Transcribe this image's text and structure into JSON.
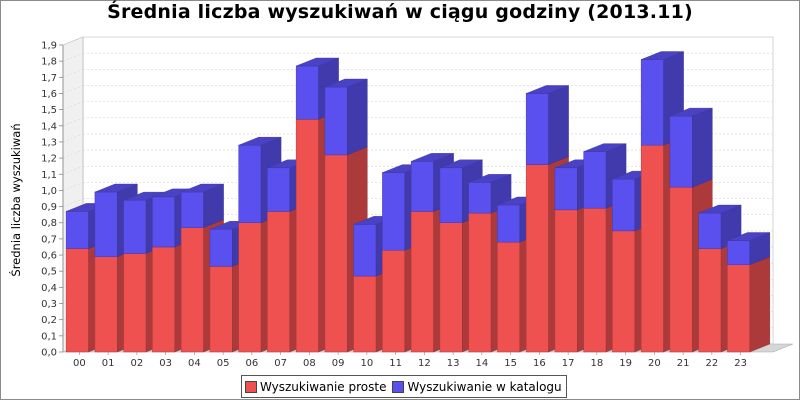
{
  "chart_data": {
    "type": "bar",
    "stacked": true,
    "three_d": true,
    "title": "Średnia liczba wyszukiwań w ciągu godziny (2013.11)",
    "xlabel": "",
    "ylabel": "Średnia liczba wyszukiwań",
    "ylim": [
      0,
      1.9
    ],
    "ytick_step": 0.1,
    "grid": true,
    "legend_position": "bottom",
    "categories": [
      "00",
      "01",
      "02",
      "03",
      "04",
      "05",
      "06",
      "07",
      "08",
      "09",
      "10",
      "11",
      "12",
      "13",
      "14",
      "15",
      "16",
      "17",
      "18",
      "19",
      "20",
      "21",
      "22",
      "23"
    ],
    "series": [
      {
        "name": "Wyszukiwanie proste",
        "color": "#ef5050",
        "values": [
          0.64,
          0.59,
          0.61,
          0.65,
          0.77,
          0.53,
          0.8,
          0.87,
          1.44,
          1.22,
          0.47,
          0.63,
          0.87,
          0.8,
          0.86,
          0.68,
          1.16,
          0.88,
          0.89,
          0.75,
          1.28,
          1.02,
          0.64,
          0.54
        ]
      },
      {
        "name": "Wyszukiwanie w katalogu",
        "color": "#5a50ef",
        "values": [
          0.23,
          0.4,
          0.33,
          0.31,
          0.22,
          0.23,
          0.48,
          0.27,
          0.33,
          0.42,
          0.32,
          0.48,
          0.31,
          0.34,
          0.19,
          0.23,
          0.44,
          0.26,
          0.35,
          0.32,
          0.53,
          0.44,
          0.22,
          0.15
        ]
      }
    ]
  }
}
